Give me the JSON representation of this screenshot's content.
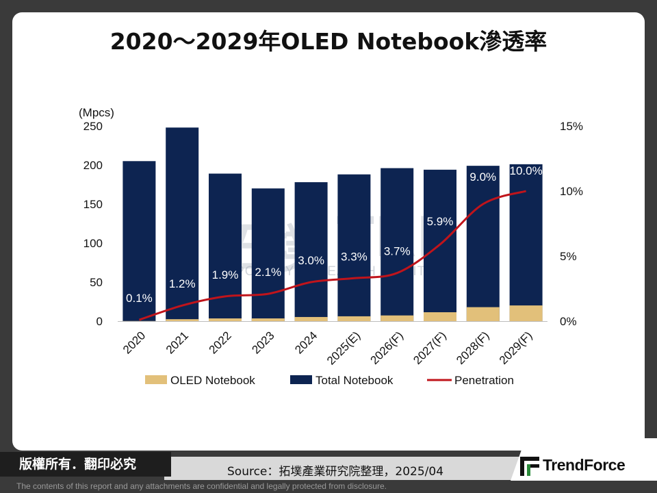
{
  "page": {
    "title": "2020～2029年OLED Notebook滲透率",
    "copyright": "版權所有．翻印必究",
    "source": "Source：拓墣產業研究院整理，2025/04",
    "brand": "TrendForce",
    "disclaimer": "The contents of this report and any attachments are confidential and legally protected from disclosure.",
    "watermark_cjk": "拓墣",
    "watermark_trl": "TRI",
    "watermark_sub": "TOPOLOGY RESEARCH INSTITUTE"
  },
  "colors": {
    "total": "#0d2451",
    "oled": "#e2c07a",
    "line": "#c0141b"
  },
  "chart_data": {
    "type": "bar",
    "title": "2020～2029年OLED Notebook滲透率",
    "ylabel_left": "(Mpcs)",
    "ylim_left": [
      0,
      250
    ],
    "yticks_left": [
      "0",
      "50",
      "100",
      "150",
      "200",
      "250"
    ],
    "ylim_right": [
      0,
      15
    ],
    "yticks_right": [
      "0%",
      "5%",
      "10%",
      "15%"
    ],
    "categories": [
      "2020",
      "2021",
      "2022",
      "2023",
      "2024",
      "2025(E)",
      "2026(F)",
      "2027(F)",
      "2028(F)",
      "2029(F)"
    ],
    "series": [
      {
        "name": "Total Notebook",
        "type": "bar",
        "values": [
          205,
          248,
          189,
          170,
          178,
          188,
          196,
          194,
          199,
          201
        ]
      },
      {
        "name": "OLED Notebook",
        "type": "bar",
        "values": [
          0.2,
          2.5,
          3.5,
          3.5,
          5.3,
          6.2,
          7.3,
          11.4,
          17.9,
          20.1
        ]
      },
      {
        "name": "Penetration",
        "type": "line",
        "axis": "right",
        "values": [
          0.1,
          1.2,
          1.9,
          2.1,
          3.0,
          3.3,
          3.7,
          5.9,
          9.0,
          10.0
        ],
        "labels": [
          "0.1%",
          "1.2%",
          "1.9%",
          "2.1%",
          "3.0%",
          "3.3%",
          "3.7%",
          "5.9%",
          "9.0%",
          "10.0%"
        ]
      }
    ],
    "legend": [
      "OLED Notebook",
      "Total Notebook",
      "Penetration"
    ],
    "legend_position": "bottom"
  }
}
